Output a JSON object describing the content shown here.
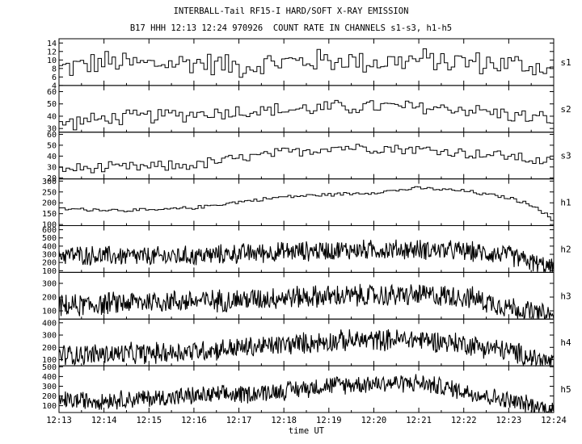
{
  "title": "INTERBALL-Tail RF15-I HARD/SOFT X-RAY EMISSION",
  "subtitle": "B17 HHH 12:13 12:24 970926  COUNT RATE IN CHANNELS s1-s3, h1-h5",
  "chart_data": {
    "type": "line",
    "title": "INTERBALL-Tail RF15-I HARD/SOFT X-RAY EMISSION",
    "subtitle": "B17 HHH 12:13 12:24 970926  COUNT RATE IN CHANNELS s1-s3, h1-h5",
    "xlabel": "time UT",
    "x_ticks": [
      "12:13",
      "12:14",
      "12:15",
      "12:16",
      "12:17",
      "12:18",
      "12:19",
      "12:20",
      "12:21",
      "12:22",
      "12:23",
      "12:24"
    ],
    "x_start": "12:13",
    "x_end": "12:24",
    "grid": false,
    "panels": [
      {
        "name": "s1",
        "ylim": [
          4,
          15
        ],
        "yticks": [
          4,
          6,
          8,
          10,
          12,
          14
        ],
        "steps": 140,
        "noise": 3.2,
        "profile": [
          [
            0,
            8
          ],
          [
            1,
            9.5
          ],
          [
            2,
            9
          ],
          [
            3,
            9.5
          ],
          [
            4,
            8.5
          ],
          [
            5,
            9.5
          ],
          [
            6,
            10
          ],
          [
            7,
            9.5
          ],
          [
            8,
            10
          ],
          [
            9,
            9.5
          ],
          [
            10,
            9
          ],
          [
            11,
            8
          ]
        ]
      },
      {
        "name": "s2",
        "ylim": [
          27,
          65
        ],
        "yticks": [
          30,
          40,
          50,
          60
        ],
        "steps": 140,
        "noise": 7,
        "profile": [
          [
            0,
            34
          ],
          [
            1,
            38
          ],
          [
            2,
            40
          ],
          [
            3,
            42
          ],
          [
            4,
            44
          ],
          [
            5,
            45
          ],
          [
            6,
            47
          ],
          [
            7,
            48
          ],
          [
            8,
            47
          ],
          [
            9,
            46
          ],
          [
            10,
            41
          ],
          [
            11,
            37
          ]
        ]
      },
      {
        "name": "s3",
        "ylim": [
          19,
          62
        ],
        "yticks": [
          20,
          30,
          40,
          50,
          60
        ],
        "steps": 140,
        "noise": 6,
        "profile": [
          [
            0,
            28
          ],
          [
            1,
            29
          ],
          [
            2,
            30
          ],
          [
            3,
            32
          ],
          [
            4,
            38
          ],
          [
            5,
            43
          ],
          [
            6,
            48
          ],
          [
            7,
            48
          ],
          [
            8,
            46
          ],
          [
            9,
            43
          ],
          [
            10,
            40
          ],
          [
            11,
            33
          ]
        ]
      },
      {
        "name": "h1",
        "ylim": [
          95,
          310
        ],
        "yticks": [
          100,
          150,
          200,
          250,
          300
        ],
        "steps": 160,
        "noise": 9,
        "profile": [
          [
            0,
            172
          ],
          [
            1,
            168
          ],
          [
            2,
            165
          ],
          [
            3,
            178
          ],
          [
            4,
            205
          ],
          [
            5,
            228
          ],
          [
            6,
            238
          ],
          [
            7,
            248
          ],
          [
            8,
            268
          ],
          [
            9,
            254
          ],
          [
            10,
            222
          ],
          [
            10.6,
            180
          ],
          [
            11,
            110
          ]
        ]
      },
      {
        "name": "h2",
        "ylim": [
          80,
          650
        ],
        "yticks": [
          100,
          200,
          300,
          400,
          500,
          600
        ],
        "steps": 700,
        "noise": 140,
        "profile": [
          [
            0,
            300
          ],
          [
            1,
            280
          ],
          [
            2,
            270
          ],
          [
            3,
            280
          ],
          [
            4,
            310
          ],
          [
            5,
            330
          ],
          [
            6,
            350
          ],
          [
            7,
            355
          ],
          [
            8,
            360
          ],
          [
            9,
            340
          ],
          [
            10,
            290
          ],
          [
            11,
            120
          ]
        ]
      },
      {
        "name": "h3",
        "ylim": [
          40,
          380
        ],
        "yticks": [
          100,
          200,
          300
        ],
        "steps": 700,
        "noise": 95,
        "profile": [
          [
            0,
            130
          ],
          [
            1,
            150
          ],
          [
            2,
            170
          ],
          [
            3,
            170
          ],
          [
            4,
            180
          ],
          [
            5,
            200
          ],
          [
            6,
            205
          ],
          [
            7,
            210
          ],
          [
            8,
            215
          ],
          [
            9,
            205
          ],
          [
            10,
            130
          ],
          [
            11,
            50
          ]
        ]
      },
      {
        "name": "h4",
        "ylim": [
          50,
          430
        ],
        "yticks": [
          100,
          200,
          300,
          400
        ],
        "steps": 700,
        "noise": 100,
        "profile": [
          [
            0,
            140
          ],
          [
            1,
            145
          ],
          [
            2,
            150
          ],
          [
            3,
            170
          ],
          [
            4,
            195
          ],
          [
            5,
            220
          ],
          [
            6,
            250
          ],
          [
            7,
            260
          ],
          [
            8,
            265
          ],
          [
            9,
            230
          ],
          [
            10,
            170
          ],
          [
            11,
            70
          ]
        ]
      },
      {
        "name": "h5",
        "ylim": [
          30,
          510
        ],
        "yticks": [
          100,
          200,
          300,
          400,
          500
        ],
        "steps": 700,
        "noise": 110,
        "profile": [
          [
            0,
            150
          ],
          [
            1,
            160
          ],
          [
            2,
            175
          ],
          [
            3,
            200
          ],
          [
            4,
            215
          ],
          [
            5,
            255
          ],
          [
            6,
            310
          ],
          [
            7,
            330
          ],
          [
            8,
            335
          ],
          [
            9,
            250
          ],
          [
            10,
            150
          ],
          [
            11,
            60
          ]
        ]
      }
    ]
  }
}
